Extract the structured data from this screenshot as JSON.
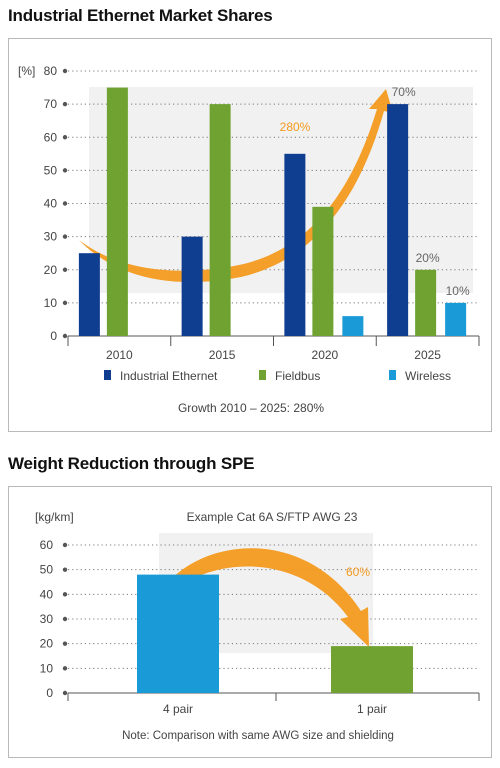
{
  "title_1": "Industrial Ethernet Market Shares",
  "title_2": "Weight Reduction through SPE",
  "colors": {
    "ie": "#0f3d8f",
    "fieldbus": "#6fa231",
    "wireless": "#1b9ad8",
    "orange": "#f39a1f"
  },
  "chart_data": [
    {
      "type": "bar",
      "ylabel": "[%]",
      "ylim": [
        0,
        80
      ],
      "yticks": [
        0,
        10,
        20,
        30,
        40,
        50,
        60,
        70,
        80
      ],
      "categories": [
        "2010",
        "2015",
        "2020",
        "2025"
      ],
      "series": [
        {
          "name": "Industrial Ethernet",
          "values": [
            25,
            30,
            55,
            70
          ]
        },
        {
          "name": "Fieldbus",
          "values": [
            75,
            70,
            39,
            20
          ]
        },
        {
          "name": "Wireless",
          "values": [
            0,
            0,
            6,
            10
          ]
        }
      ],
      "data_labels": [
        "70%",
        "20%",
        "10%"
      ],
      "annotation": "280%",
      "footnote": "Growth 2010 – 2025: 280%",
      "legend_position": "bottom"
    },
    {
      "type": "bar",
      "subtitle": "Example Cat 6A S/FTP AWG 23",
      "ylabel": "[kg/km]",
      "ylim": [
        0,
        60
      ],
      "yticks": [
        0,
        10,
        20,
        30,
        40,
        50,
        60
      ],
      "categories": [
        "4 pair",
        "1 pair"
      ],
      "values": [
        48,
        19
      ],
      "annotation": "60%",
      "footnote": "Note: Comparison with same AWG size and shielding"
    }
  ]
}
